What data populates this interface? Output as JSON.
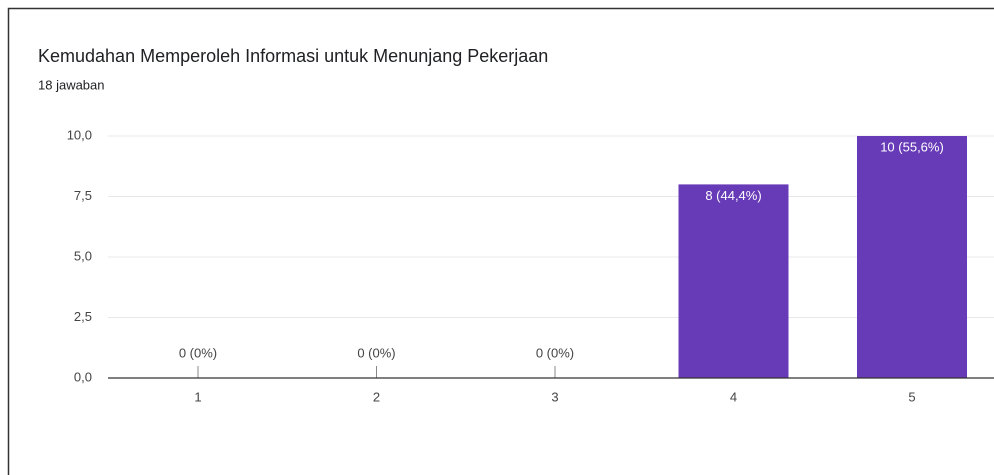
{
  "chart_data": {
    "type": "bar",
    "title": "Kemudahan Memperoleh Informasi untuk Menunjang Pekerjaan",
    "subtitle": "18 jawaban",
    "categories": [
      "1",
      "2",
      "3",
      "4",
      "5"
    ],
    "values": [
      0,
      0,
      0,
      8,
      10
    ],
    "value_labels": [
      "0 (0%)",
      "0 (0%)",
      "0 (0%)",
      "8 (44,4%)",
      "10 (55,6%)"
    ],
    "color": "#673ab7",
    "ylim": [
      0,
      10
    ],
    "yticks": [
      {
        "value": 0,
        "label": "0,0"
      },
      {
        "value": 2.5,
        "label": "2,5"
      },
      {
        "value": 5,
        "label": "5,0"
      },
      {
        "value": 7.5,
        "label": "7,5"
      },
      {
        "value": 10,
        "label": "10,0"
      }
    ],
    "grid": true
  }
}
